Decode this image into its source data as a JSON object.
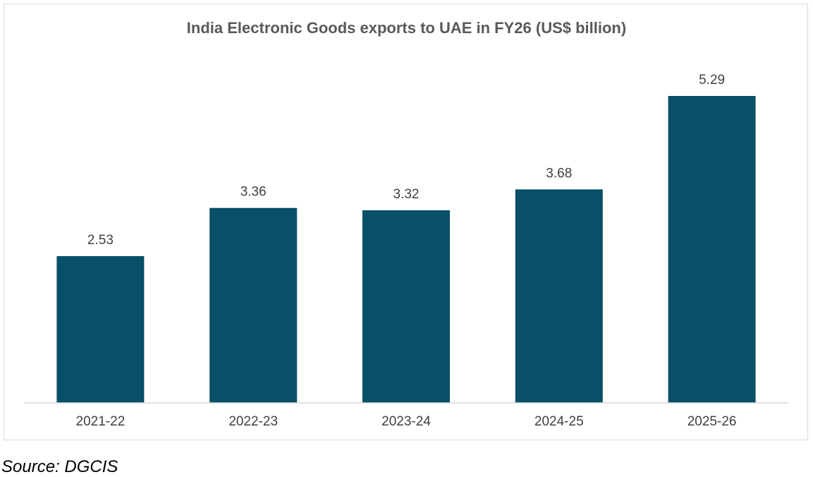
{
  "chart_data": {
    "type": "bar",
    "title": "India Electronic Goods exports to UAE in FY26 (US$ billion)",
    "categories": [
      "2021-22",
      "2022-23",
      "2023-24",
      "2024-25",
      "2025-26"
    ],
    "values": [
      2.53,
      3.36,
      3.32,
      3.68,
      5.29
    ],
    "data_labels": [
      "2.53",
      "3.36",
      "3.32",
      "3.68",
      "5.29"
    ],
    "xlabel": "",
    "ylabel": "",
    "ylim": [
      0,
      5.29
    ],
    "grid": false,
    "legend": "none",
    "bar_color": "#084f68"
  },
  "source": "Source: DGCIS"
}
